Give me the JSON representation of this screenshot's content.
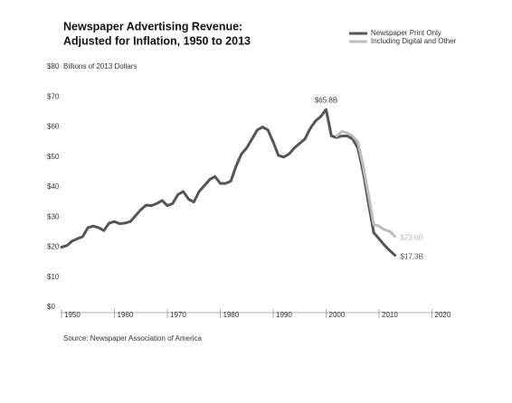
{
  "chart_data": {
    "type": "line",
    "title": [
      "Newspaper Advertising Revenue:",
      "Adjusted for Inflation, 1950 to 2013"
    ],
    "ylabel": "Billions of 2013 Dollars",
    "source": "Source: Newspaper Association of America",
    "legend": "top-right",
    "grid": false,
    "xlim": [
      1950,
      2020
    ],
    "xticks": [
      1950,
      1960,
      1970,
      1980,
      1990,
      2000,
      2010,
      2020
    ],
    "ylim": [
      0,
      80
    ],
    "yticks": [
      {
        "value": 0,
        "label": "$0"
      },
      {
        "value": 10,
        "label": "$10"
      },
      {
        "value": 20,
        "label": "$20"
      },
      {
        "value": 30,
        "label": "$30"
      },
      {
        "value": 40,
        "label": "$40"
      },
      {
        "value": 50,
        "label": "$50"
      },
      {
        "value": 60,
        "label": "$60"
      },
      {
        "value": 70,
        "label": "$70"
      },
      {
        "value": 80,
        "label": "$80"
      }
    ],
    "x": [
      1950,
      1951,
      1952,
      1953,
      1954,
      1955,
      1956,
      1957,
      1958,
      1959,
      1960,
      1961,
      1962,
      1963,
      1964,
      1965,
      1966,
      1967,
      1968,
      1969,
      1970,
      1971,
      1972,
      1973,
      1974,
      1975,
      1976,
      1977,
      1978,
      1979,
      1980,
      1981,
      1982,
      1983,
      1984,
      1985,
      1986,
      1987,
      1988,
      1989,
      1990,
      1991,
      1992,
      1993,
      1994,
      1995,
      1996,
      1997,
      1998,
      1999,
      2000,
      2001,
      2002,
      2003,
      2004,
      2005,
      2006,
      2007,
      2008,
      2009,
      2010,
      2011,
      2012,
      2013
    ],
    "series": [
      {
        "name": "Newspaper Print Only",
        "color": "#555555",
        "values": [
          20,
          20.5,
          22,
          22.8,
          23.5,
          26.5,
          27,
          26.5,
          25.5,
          28,
          28.5,
          27.8,
          28,
          28.5,
          30.5,
          32.5,
          34,
          33.8,
          34.5,
          35.5,
          33.8,
          34.5,
          37.5,
          38.5,
          36,
          35,
          38.5,
          40.5,
          42.5,
          43.5,
          41.2,
          41.2,
          42,
          47,
          51,
          53,
          56,
          59,
          60,
          59,
          55,
          50.5,
          50,
          51,
          53,
          54.5,
          56,
          59.5,
          62,
          63.5,
          65.8,
          57,
          56.5,
          57,
          57,
          56,
          53,
          45,
          34.7,
          24.8,
          22.8,
          20.7,
          18.9,
          17.3
        ],
        "value_labels": [
          null,
          null,
          null,
          null,
          null,
          null,
          null,
          null,
          null,
          null,
          null,
          null,
          null,
          null,
          null,
          null,
          null,
          null,
          null,
          null,
          null,
          null,
          null,
          null,
          null,
          null,
          null,
          null,
          null,
          null,
          null,
          null,
          null,
          null,
          null,
          null,
          null,
          null,
          null,
          null,
          null,
          null,
          null,
          null,
          null,
          null,
          null,
          null,
          null,
          null,
          "$65.8B",
          null,
          null,
          null,
          null,
          null,
          null,
          null,
          null,
          null,
          null,
          null,
          null,
          "$17.3B"
        ]
      },
      {
        "name": "Including Digital and Other",
        "color": "#bbbbbb",
        "values": [
          null,
          null,
          null,
          null,
          null,
          null,
          null,
          null,
          null,
          null,
          null,
          null,
          null,
          null,
          null,
          null,
          null,
          null,
          null,
          null,
          null,
          null,
          null,
          null,
          null,
          null,
          null,
          null,
          null,
          null,
          null,
          null,
          null,
          null,
          null,
          null,
          null,
          null,
          null,
          null,
          null,
          null,
          null,
          null,
          null,
          null,
          null,
          null,
          null,
          null,
          null,
          null,
          57,
          58.5,
          58,
          57,
          55,
          47,
          37.5,
          27.5,
          27,
          25.8,
          25.3,
          23.6
        ],
        "value_labels": [
          null,
          null,
          null,
          null,
          null,
          null,
          null,
          null,
          null,
          null,
          null,
          null,
          null,
          null,
          null,
          null,
          null,
          null,
          null,
          null,
          null,
          null,
          null,
          null,
          null,
          null,
          null,
          null,
          null,
          null,
          null,
          null,
          null,
          null,
          null,
          null,
          null,
          null,
          null,
          null,
          null,
          null,
          null,
          null,
          null,
          null,
          null,
          null,
          null,
          null,
          null,
          null,
          null,
          null,
          null,
          null,
          null,
          null,
          null,
          null,
          null,
          null,
          null,
          "$23.6B"
        ]
      }
    ]
  }
}
